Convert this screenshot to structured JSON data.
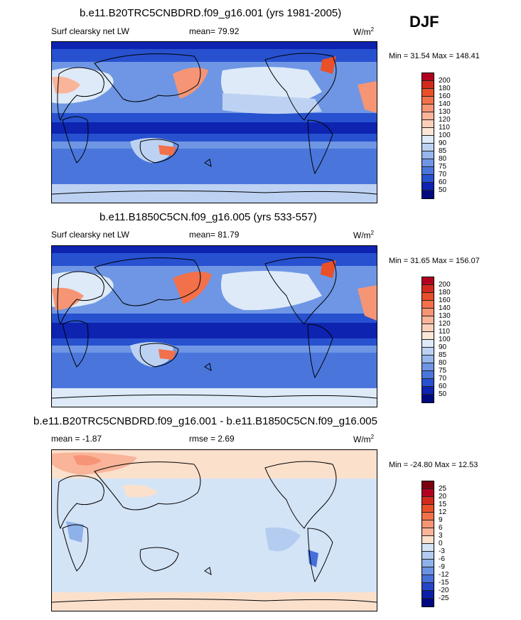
{
  "season": "DJF",
  "panels": [
    {
      "title": "b.e11.B20TRC5CNBDRD.f09_g16.001 (yrs 1981-2005)",
      "left_label": "Surf clearsky net LW",
      "mid_label": "mean=  79.92",
      "units": "W/m",
      "units_sup": "2",
      "minmax": "Min =  31.54 Max = 148.41",
      "levels": [
        "200",
        "180",
        "160",
        "140",
        "130",
        "120",
        "110",
        "100",
        "90",
        "85",
        "80",
        "75",
        "70",
        "60",
        "50"
      ],
      "colors": [
        "#b2001f",
        "#d42a1e",
        "#e8502a",
        "#f2704a",
        "#f69575",
        "#f9b49a",
        "#fbd0bb",
        "#fbe7d7",
        "#deeaf8",
        "#bdd2f2",
        "#97b6ec",
        "#6e96e4",
        "#4a76dc",
        "#2751cf",
        "#0e23b0",
        "#000a80"
      ]
    },
    {
      "title": "b.e11.B1850C5CN.f09_g16.005 (yrs 533-557)",
      "left_label": "Surf clearsky net LW",
      "mid_label": "mean=  81.79",
      "units": "W/m",
      "units_sup": "2",
      "minmax": "Min =  31.65 Max = 156.07",
      "levels": [
        "200",
        "180",
        "160",
        "140",
        "130",
        "120",
        "110",
        "100",
        "90",
        "85",
        "80",
        "75",
        "70",
        "60",
        "50"
      ],
      "colors": [
        "#b2001f",
        "#d42a1e",
        "#e8502a",
        "#f2704a",
        "#f69575",
        "#f9b49a",
        "#fbd0bb",
        "#fbe7d7",
        "#deeaf8",
        "#bdd2f2",
        "#97b6ec",
        "#6e96e4",
        "#4a76dc",
        "#2751cf",
        "#0e23b0",
        "#000a80"
      ]
    },
    {
      "title": "b.e11.B20TRC5CNBDRD.f09_g16.001 - b.e11.B1850C5CN.f09_g16.005",
      "left_label": "mean =  -1.87",
      "mid_label": "rmse =   2.69",
      "units": "W/m",
      "units_sup": "2",
      "minmax": "Min = -24.80 Max =  12.53",
      "levels": [
        "25",
        "20",
        "15",
        "12",
        "9",
        "6",
        "3",
        "0",
        "-3",
        "-6",
        "-9",
        "-12",
        "-15",
        "-20",
        "-25"
      ],
      "colors": [
        "#7a0010",
        "#b2001f",
        "#d42a1e",
        "#e8502a",
        "#f2704a",
        "#f69575",
        "#f9b49a",
        "#fbe0cc",
        "#d4e4f7",
        "#b3ccf0",
        "#8fb1ea",
        "#6a92e2",
        "#4670d8",
        "#2447c6",
        "#0a1fa8",
        "#000a80"
      ]
    }
  ]
}
